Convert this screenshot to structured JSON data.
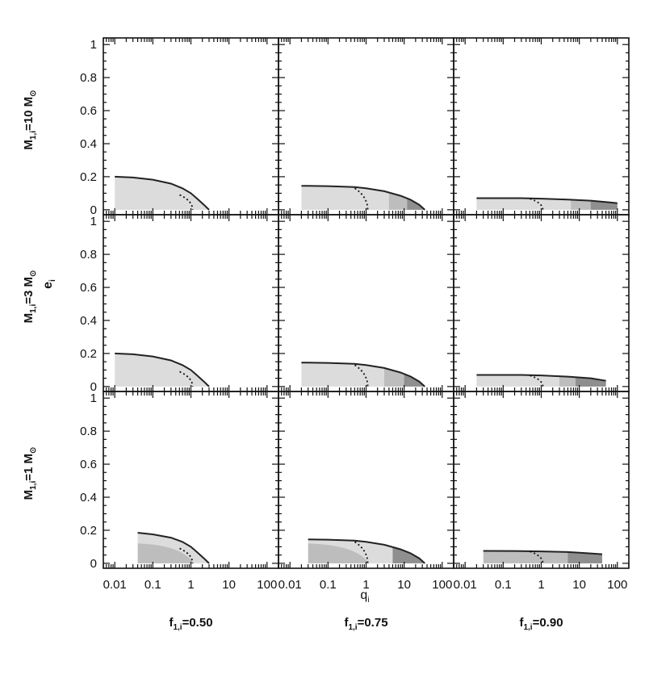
{
  "figure": {
    "x_axis_label": "q",
    "x_axis_label_sub": "i",
    "y_axis_label": "e",
    "y_axis_label_sub": "i"
  },
  "colors": {
    "frame": "#111111",
    "fill_light": "#dcdcdc",
    "fill_mid": "#bdbdbd",
    "fill_dark": "#8f8f8f",
    "boundary": "#222222"
  },
  "rows": [
    {
      "label_main": "M",
      "label_sub": "1,i",
      "label_rest": "=10 M",
      "label_sun": "⊙"
    },
    {
      "label_main": "M",
      "label_sub": "1,i",
      "label_rest": "=3 M",
      "label_sun": "⊙"
    },
    {
      "label_main": "M",
      "label_sub": "1,i",
      "label_rest": "=1 M",
      "label_sun": "⊙"
    }
  ],
  "columns": [
    {
      "label_main": "f",
      "label_sub": "1,i",
      "label_rest": "=0.50"
    },
    {
      "label_main": "f",
      "label_sub": "1,i",
      "label_rest": "=0.75"
    },
    {
      "label_main": "f",
      "label_sub": "1,i",
      "label_rest": "=0.90"
    }
  ],
  "chart_data": {
    "type": "area",
    "x_scale": "log",
    "xlim": [
      0.005,
      200
    ],
    "ylim": [
      -0.03,
      1.04
    ],
    "x_ticks": [
      "0.01",
      "0.1",
      "1",
      "10",
      "100"
    ],
    "x_tick_values": [
      0.01,
      0.1,
      1,
      10,
      100
    ],
    "y_ticks": [
      "0",
      "0.2",
      "0.4",
      "0.6",
      "0.8",
      "1"
    ],
    "y_tick_values": [
      0,
      0.2,
      0.4,
      0.6,
      0.8,
      1
    ],
    "panels": [
      {
        "row": 0,
        "col": 0,
        "boundary": {
          "q": [
            0.01,
            0.03,
            0.1,
            0.3,
            0.6,
            1.0,
            1.5,
            2.2,
            3.0
          ],
          "e": [
            0.2,
            0.195,
            0.182,
            0.158,
            0.13,
            0.1,
            0.065,
            0.03,
            0.0
          ]
        },
        "dotted_q": 1.0,
        "dotted_e": 0.09,
        "dark_from_q": null,
        "mid_from_q": null
      },
      {
        "row": 0,
        "col": 1,
        "boundary": {
          "q": [
            0.02,
            0.1,
            0.5,
            1,
            3,
            8,
            15,
            25,
            35
          ],
          "e": [
            0.145,
            0.143,
            0.137,
            0.13,
            0.112,
            0.085,
            0.06,
            0.03,
            0.0
          ]
        },
        "dotted_q": 1.0,
        "dotted_e": 0.13,
        "dark_from_q": 12,
        "mid_from_q": 4
      },
      {
        "row": 0,
        "col": 2,
        "boundary": {
          "q": [
            0.02,
            0.3,
            1,
            5,
            20,
            60,
            100
          ],
          "e": [
            0.07,
            0.07,
            0.067,
            0.062,
            0.055,
            0.045,
            0.04
          ]
        },
        "dotted_q": 1.0,
        "dotted_e": 0.067,
        "dark_from_q": 20,
        "mid_from_q": 6
      },
      {
        "row": 1,
        "col": 0,
        "boundary": {
          "q": [
            0.01,
            0.03,
            0.1,
            0.3,
            0.6,
            1.0,
            1.5,
            2.2,
            3.0
          ],
          "e": [
            0.2,
            0.195,
            0.182,
            0.158,
            0.13,
            0.1,
            0.065,
            0.03,
            0.0
          ]
        },
        "dotted_q": 1.0,
        "dotted_e": 0.09,
        "dark_from_q": null,
        "mid_from_q": null
      },
      {
        "row": 1,
        "col": 1,
        "boundary": {
          "q": [
            0.02,
            0.1,
            0.5,
            1,
            3,
            8,
            15,
            25,
            35
          ],
          "e": [
            0.145,
            0.143,
            0.137,
            0.13,
            0.112,
            0.085,
            0.06,
            0.03,
            0.0
          ]
        },
        "dotted_q": 1.0,
        "dotted_e": 0.13,
        "dark_from_q": 10,
        "mid_from_q": 3
      },
      {
        "row": 1,
        "col": 2,
        "boundary": {
          "q": [
            0.02,
            0.3,
            1,
            5,
            20,
            50
          ],
          "e": [
            0.07,
            0.07,
            0.067,
            0.06,
            0.05,
            0.035
          ]
        },
        "dotted_q": 1.0,
        "dotted_e": 0.067,
        "dark_from_q": 8,
        "mid_from_q": 3
      },
      {
        "row": 2,
        "col": 0,
        "boundary": {
          "q": [
            0.04,
            0.1,
            0.3,
            0.6,
            1.0,
            1.5,
            2.2,
            3.0
          ],
          "e": [
            0.185,
            0.175,
            0.155,
            0.13,
            0.1,
            0.065,
            0.03,
            0.0
          ]
        },
        "dotted_q": 1.0,
        "dotted_e": 0.09,
        "dark_from_q": null,
        "mid_from_q": 0.04
      },
      {
        "row": 2,
        "col": 1,
        "boundary": {
          "q": [
            0.03,
            0.1,
            0.5,
            1,
            3,
            8,
            15,
            25,
            35
          ],
          "e": [
            0.145,
            0.143,
            0.137,
            0.13,
            0.112,
            0.085,
            0.06,
            0.03,
            0.0
          ]
        },
        "dotted_q": 1.0,
        "dotted_e": 0.13,
        "dark_from_q": 5,
        "mid_from_q": 0.03
      },
      {
        "row": 2,
        "col": 2,
        "boundary": {
          "q": [
            0.03,
            0.3,
            1,
            5,
            15,
            40
          ],
          "e": [
            0.075,
            0.074,
            0.072,
            0.068,
            0.062,
            0.055
          ]
        },
        "dotted_q": 1.0,
        "dotted_e": 0.072,
        "dark_from_q": 5,
        "mid_from_q": 0.03
      }
    ]
  }
}
